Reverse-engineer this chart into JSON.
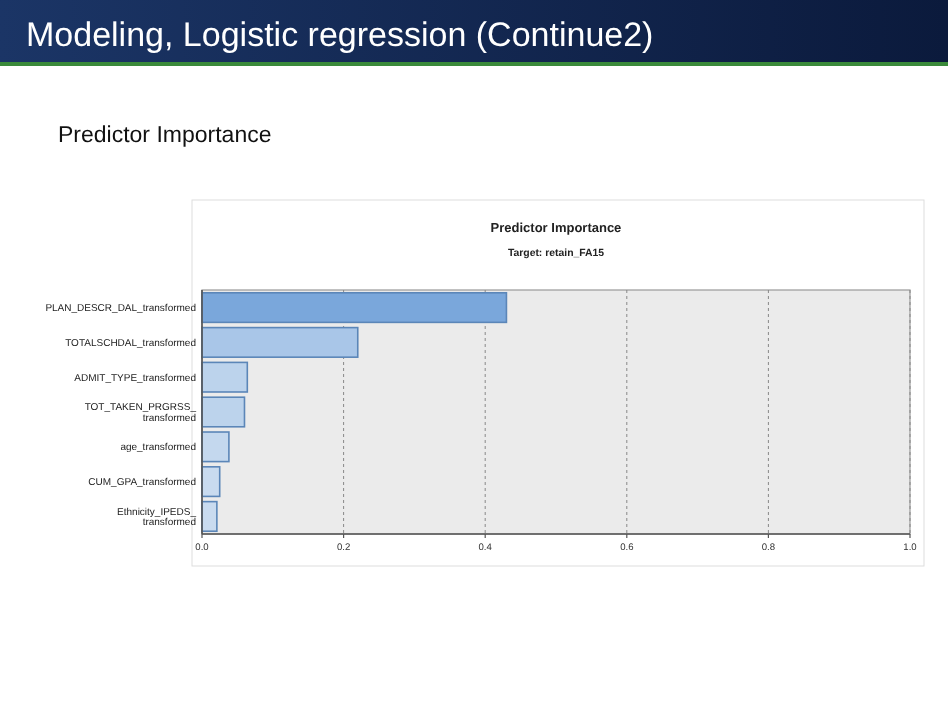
{
  "chart_data": {
    "type": "bar",
    "orientation": "horizontal",
    "title": "Predictor Importance",
    "subtitle": "Target: retain_FA15",
    "annotations": [
      "Modeling, Logistic regression (Continue2)",
      "Predictor Importance"
    ],
    "categories": [
      "PLAN_DESCR_DAL_transformed",
      "TOTALSCHDAL_transformed",
      "ADMIT_TYPE_transformed",
      "TOT_TAKEN_PRGRSS_transformed",
      "age_transformed",
      "CUM_GPA_transformed",
      "Ethnicity_IPEDS_transformed"
    ],
    "values": [
      0.43,
      0.22,
      0.064,
      0.06,
      0.038,
      0.025,
      0.021
    ],
    "colors": [
      "#7aa7db",
      "#a9c6e8",
      "#bcd3ec",
      "#bcd3ec",
      "#c4d8ee",
      "#c9dbef",
      "#c9dbef"
    ],
    "xlim": [
      0,
      1
    ],
    "xticks": [
      {
        "value": 0,
        "label": "0.0"
      },
      0.2,
      0.4,
      0.6,
      0.8,
      {
        "value": 1,
        "label": "1.0"
      }
    ],
    "grid": "x"
  }
}
